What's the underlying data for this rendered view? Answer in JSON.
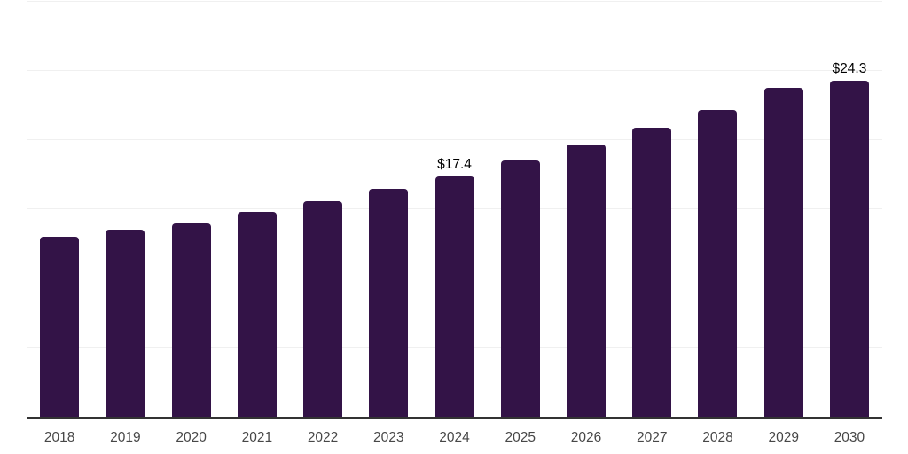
{
  "chart_data": {
    "type": "bar",
    "title": "",
    "xlabel": "",
    "ylabel": "",
    "categories": [
      "2018",
      "2019",
      "2020",
      "2021",
      "2022",
      "2023",
      "2024",
      "2025",
      "2026",
      "2027",
      "2028",
      "2029",
      "2030"
    ],
    "values": [
      13.0,
      13.5,
      14.0,
      14.8,
      15.6,
      16.5,
      17.4,
      18.5,
      19.7,
      20.9,
      22.2,
      23.8,
      24.3
    ],
    "data_labels": [
      null,
      null,
      null,
      null,
      null,
      null,
      "$17.4",
      null,
      null,
      null,
      null,
      null,
      "$24.3"
    ],
    "ylim": [
      0,
      30
    ],
    "grid_step": 5,
    "grid": "horizontal-only",
    "legend": "none",
    "y_tick_labels_visible": false,
    "colors": {
      "bar": "#331347",
      "axis_line": "#333333",
      "gridline": "#f0f0f0",
      "tick_label": "#474747",
      "value_label": "#000000",
      "background": "#ffffff"
    }
  }
}
